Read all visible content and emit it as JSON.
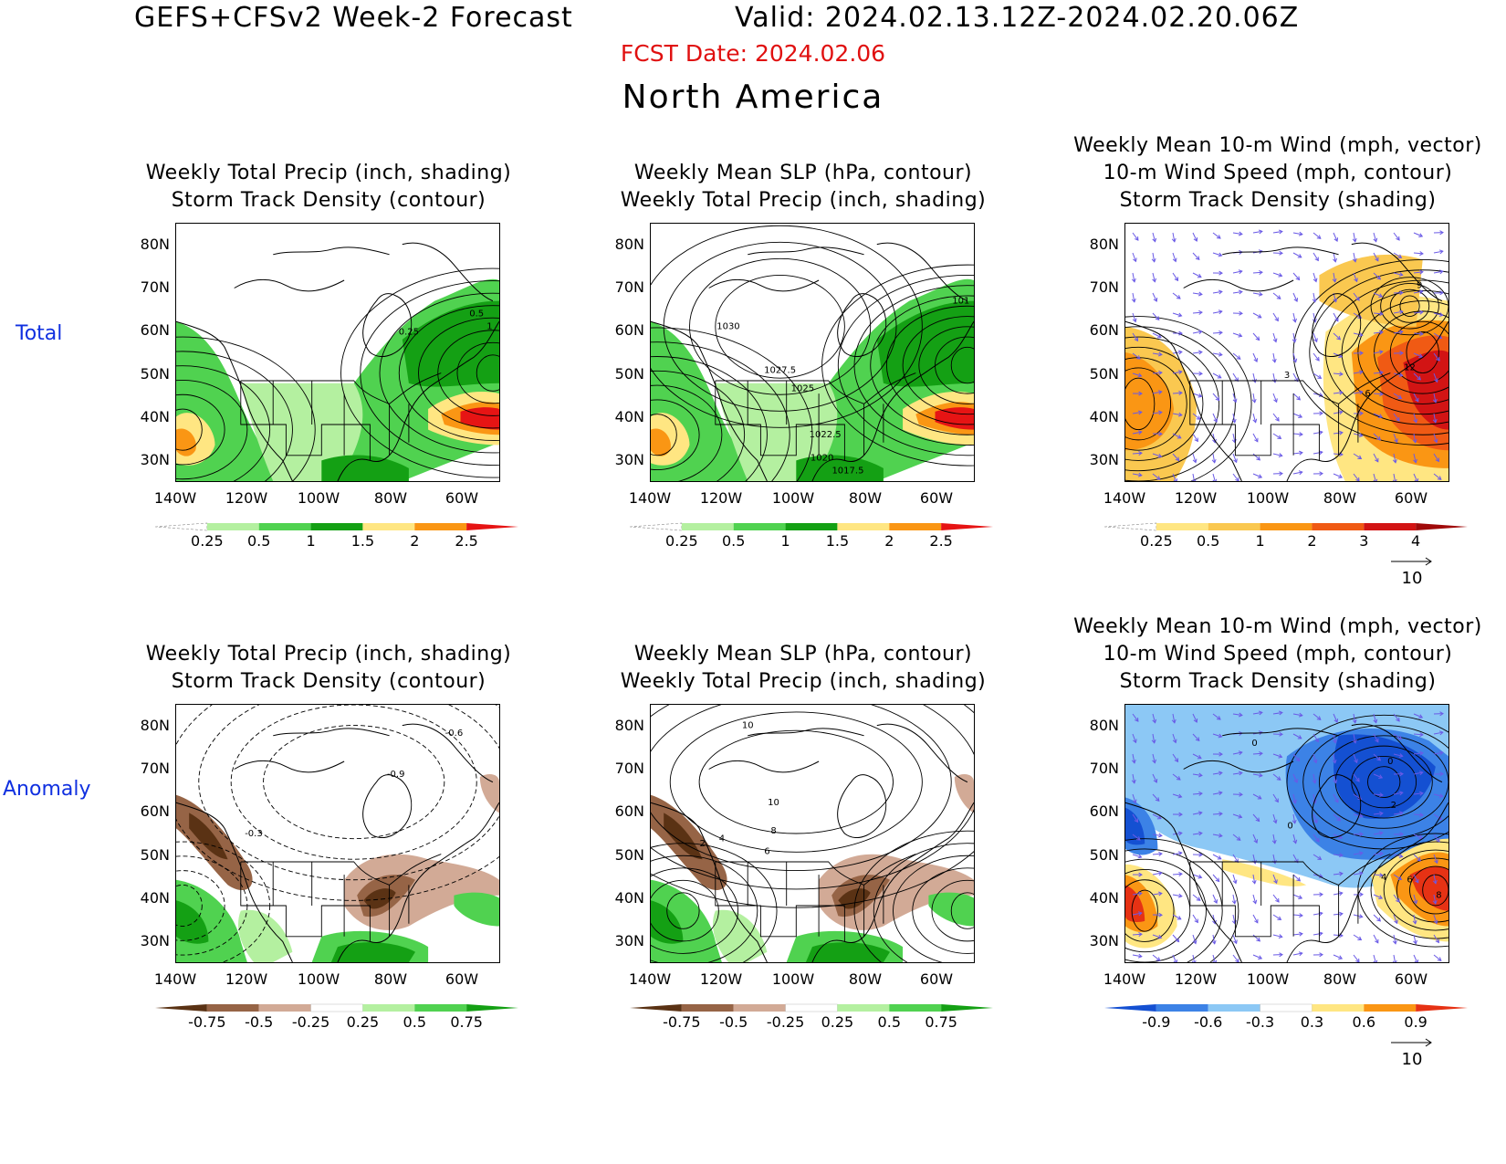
{
  "header": {
    "title_left": "GEFS+CFSv2 Week-2 Forecast",
    "title_right": "Valid: 2024.02.13.12Z-2024.02.20.06Z",
    "fcst_date": "FCST Date: 2024.02.06",
    "region": "North America"
  },
  "rows": [
    {
      "label": "Total"
    },
    {
      "label": "Anomaly"
    }
  ],
  "axes": {
    "lat_labels": [
      "80N",
      "70N",
      "60N",
      "50N",
      "40N",
      "30N"
    ],
    "lon_labels": [
      "140W",
      "120W",
      "100W",
      "80W",
      "60W"
    ]
  },
  "panels": [
    {
      "id": "total-precip",
      "title_lines": [
        "Weekly Total Precip (inch, shading)",
        "Storm Track Density (contour)"
      ],
      "colorbar": {
        "labels": [
          "0.25",
          "0.5",
          "1",
          "1.5",
          "2",
          "2.5"
        ],
        "colors": [
          "#ffffff",
          "#b4f0a0",
          "#50d250",
          "#14a014",
          "#ffe682",
          "#fa9614",
          "#e61414"
        ]
      },
      "contour_labels": [
        "0.5",
        "1",
        "0.25"
      ]
    },
    {
      "id": "total-slp",
      "title_lines": [
        "Weekly Mean SLP (hPa, contour)",
        "Weekly Total Precip (inch, shading)"
      ],
      "colorbar": {
        "labels": [
          "0.25",
          "0.5",
          "1",
          "1.5",
          "2",
          "2.5"
        ],
        "colors": [
          "#ffffff",
          "#b4f0a0",
          "#50d250",
          "#14a014",
          "#ffe682",
          "#fa9614",
          "#e61414"
        ]
      },
      "contour_labels": [
        "1030",
        "1027.5",
        "1025",
        "1022.5",
        "1020",
        "1017.5",
        "101"
      ]
    },
    {
      "id": "total-wind",
      "title_lines": [
        "Weekly Mean 10-m Wind (mph, vector)",
        "10-m Wind Speed (mph, contour)",
        "Storm Track Density (shading)"
      ],
      "colorbar": {
        "labels": [
          "0.25",
          "0.5",
          "1",
          "2",
          "3",
          "4"
        ],
        "colors": [
          "#ffffff",
          "#ffe682",
          "#fac850",
          "#fa9614",
          "#f05a14",
          "#d21414",
          "#a00a0a"
        ]
      },
      "contour_labels": [
        "9",
        "12",
        "6",
        "3"
      ],
      "ref_vector": "10"
    },
    {
      "id": "anom-precip",
      "title_lines": [
        "Weekly Total Precip (inch, shading)",
        "Storm Track Density (contour)"
      ],
      "colorbar": {
        "labels": [
          "-0.75",
          "-0.5",
          "-0.25",
          "0.25",
          "0.5",
          "0.75"
        ],
        "colors": [
          "#5a3214",
          "#966446",
          "#d2aa96",
          "#ffffff",
          "#b4f0a0",
          "#50d250",
          "#14a014"
        ]
      },
      "contour_labels": [
        "-0.6",
        "-0.9",
        "-0.3"
      ]
    },
    {
      "id": "anom-slp",
      "title_lines": [
        "Weekly Mean SLP (hPa, contour)",
        "Weekly Total Precip (inch, shading)"
      ],
      "colorbar": {
        "labels": [
          "-0.75",
          "-0.5",
          "-0.25",
          "0.25",
          "0.5",
          "0.75"
        ],
        "colors": [
          "#5a3214",
          "#966446",
          "#d2aa96",
          "#ffffff",
          "#b4f0a0",
          "#50d250",
          "#14a014"
        ]
      },
      "contour_labels": [
        "10",
        "10",
        "8",
        "6",
        "4",
        "2"
      ]
    },
    {
      "id": "anom-wind",
      "title_lines": [
        "Weekly Mean 10-m Wind (mph, vector)",
        "10-m Wind Speed (mph, contour)",
        "Storm Track Density (shading)"
      ],
      "colorbar": {
        "labels": [
          "-0.9",
          "-0.6",
          "-0.3",
          "0.3",
          "0.6",
          "0.9"
        ],
        "colors": [
          "#1450d2",
          "#3c82e6",
          "#8cc8f5",
          "#ffffff",
          "#ffe682",
          "#fa9614",
          "#e63214"
        ]
      },
      "contour_labels": [
        "0",
        "0",
        "2",
        "0",
        "4",
        "6",
        "8"
      ],
      "ref_vector": "10"
    }
  ]
}
